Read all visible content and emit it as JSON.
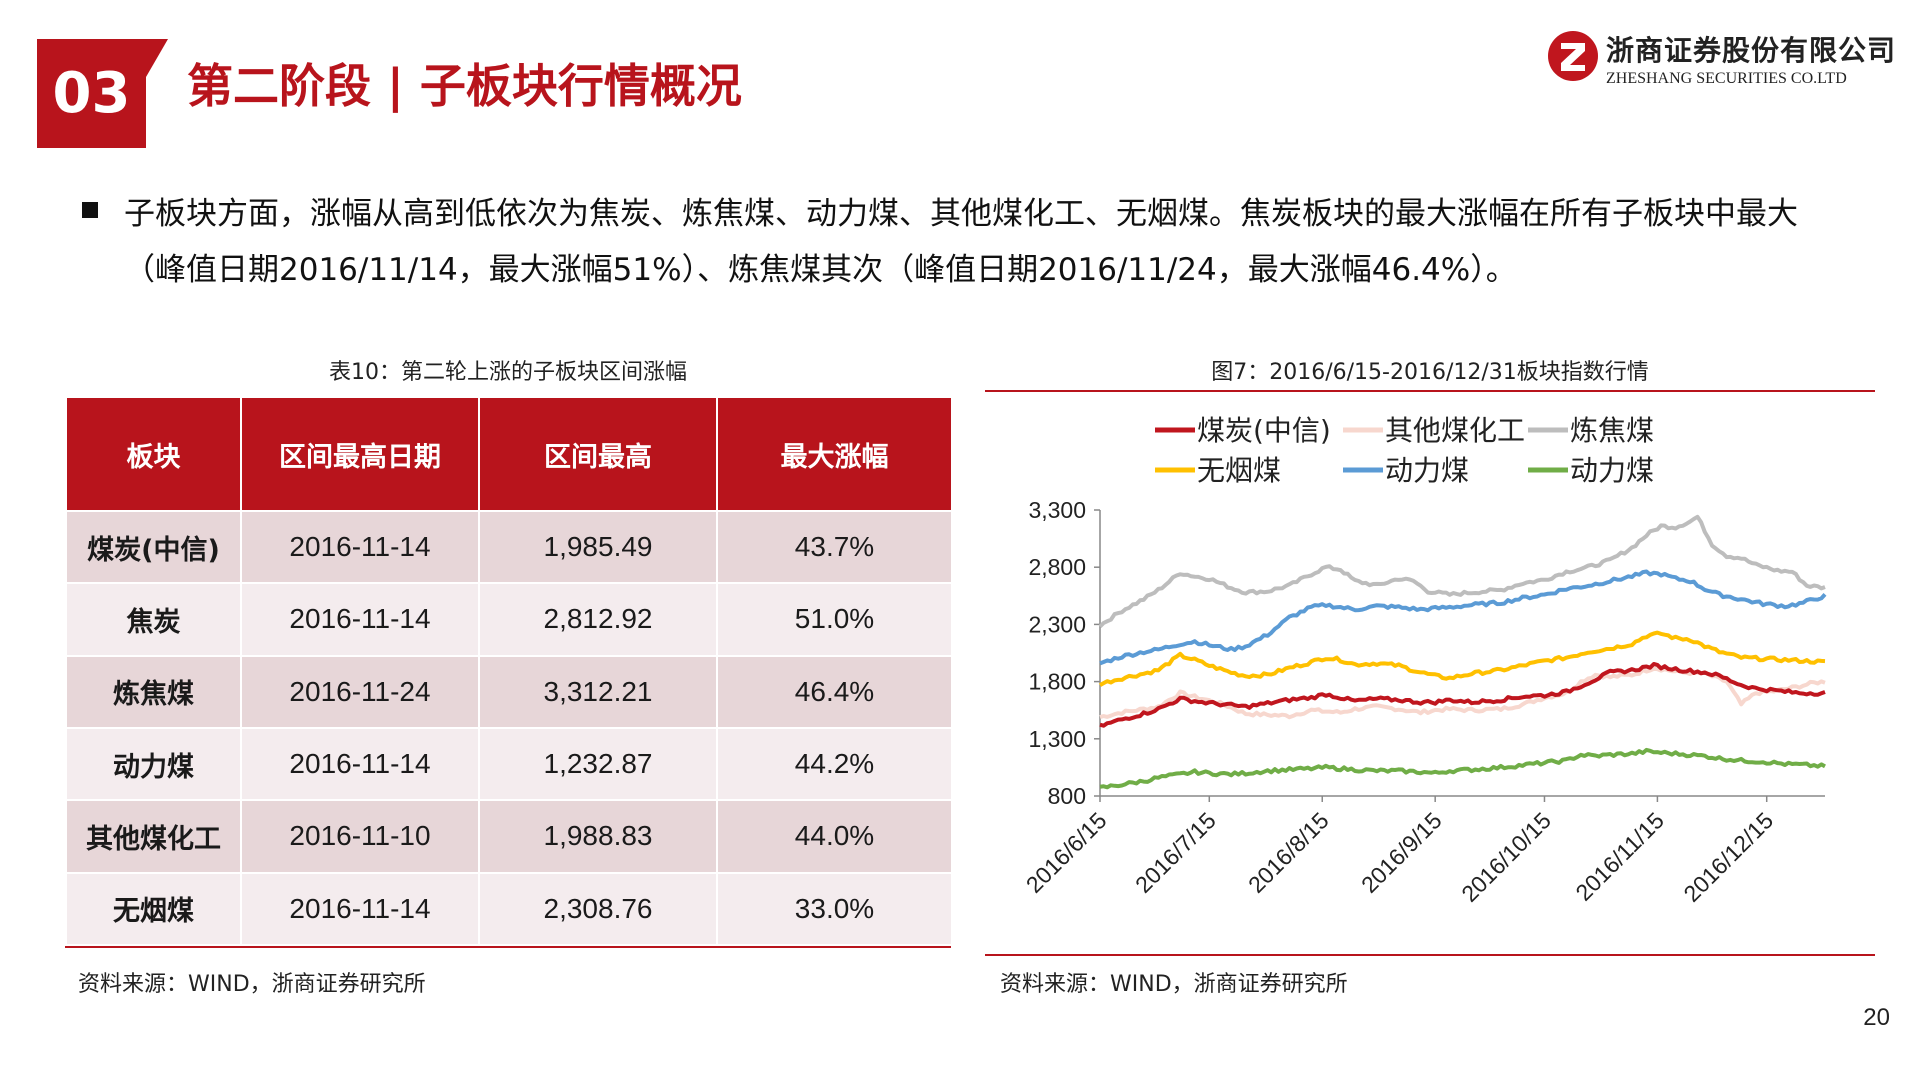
{
  "header": {
    "section_number": "03",
    "title": "第二阶段 | 子板块行情概况",
    "company_cn": "浙商证券股份有限公司",
    "company_en": "ZHESHANG SECURITIES CO.LTD"
  },
  "bullet": {
    "text": "子板块方面，涨幅从高到低依次为焦炭、炼焦煤、动力煤、其他煤化工、无烟煤。焦炭板块的最大涨幅在所有子板块中最大（峰值日期2016/11/14，最大涨幅51%）、炼焦煤其次（峰值日期2016/11/24，最大涨幅46.4%）。"
  },
  "table": {
    "caption": "表10：第二轮上涨的子板块区间涨幅",
    "headers": [
      "板块",
      "区间最高日期",
      "区间最高",
      "最大涨幅"
    ],
    "rows": [
      [
        "煤炭(中信)",
        "2016-11-14",
        "1,985.49",
        "43.7%"
      ],
      [
        "焦炭",
        "2016-11-14",
        "2,812.92",
        "51.0%"
      ],
      [
        "炼焦煤",
        "2016-11-24",
        "3,312.21",
        "46.4%"
      ],
      [
        "动力煤",
        "2016-11-14",
        "1,232.87",
        "44.2%"
      ],
      [
        "其他煤化工",
        "2016-11-10",
        "1,988.83",
        "44.0%"
      ],
      [
        "无烟煤",
        "2016-11-14",
        "2,308.76",
        "33.0%"
      ]
    ],
    "source": "资料来源：WIND，浙商证券研究所"
  },
  "chart_caption": "图7：2016/6/15-2016/12/31板块指数行情",
  "chart_source": "资料来源：WIND，浙商证券研究所",
  "page_number": "20",
  "colors": {
    "brand_red": "#b8141c",
    "row_odd": "#e7d6d8",
    "row_even": "#f4ecee"
  },
  "chart_data": {
    "type": "line",
    "title": "图7：2016/6/15-2016/12/31板块指数行情",
    "xlabel": "",
    "ylabel": "",
    "ylim": [
      800,
      3300
    ],
    "yticks": [
      "800",
      "1,300",
      "1,800",
      "2,300",
      "2,800",
      "3,300"
    ],
    "ytick_values": [
      800,
      1300,
      1800,
      2300,
      2800,
      3300
    ],
    "xticks": [
      "2016/6/15",
      "2016/7/15",
      "2016/8/15",
      "2016/9/15",
      "2016/10/15",
      "2016/11/15",
      "2016/12/15"
    ],
    "x_range_days": [
      0,
      199
    ],
    "xtick_days": [
      0,
      30,
      61,
      92,
      122,
      153,
      183
    ],
    "legend_position": "top",
    "series": [
      {
        "name": "煤炭(中信)",
        "color": "#c0161e",
        "points": [
          [
            0,
            1410
          ],
          [
            6,
            1470
          ],
          [
            12,
            1520
          ],
          [
            16,
            1560
          ],
          [
            22,
            1650
          ],
          [
            28,
            1620
          ],
          [
            34,
            1600
          ],
          [
            40,
            1580
          ],
          [
            46,
            1610
          ],
          [
            52,
            1640
          ],
          [
            58,
            1660
          ],
          [
            62,
            1690
          ],
          [
            66,
            1660
          ],
          [
            70,
            1630
          ],
          [
            76,
            1650
          ],
          [
            82,
            1640
          ],
          [
            88,
            1620
          ],
          [
            92,
            1620
          ],
          [
            96,
            1640
          ],
          [
            102,
            1620
          ],
          [
            110,
            1640
          ],
          [
            116,
            1670
          ],
          [
            122,
            1680
          ],
          [
            128,
            1710
          ],
          [
            134,
            1790
          ],
          [
            140,
            1880
          ],
          [
            146,
            1900
          ],
          [
            152,
            1940
          ],
          [
            156,
            1920
          ],
          [
            160,
            1900
          ],
          [
            166,
            1880
          ],
          [
            170,
            1850
          ],
          [
            176,
            1770
          ],
          [
            180,
            1740
          ],
          [
            186,
            1720
          ],
          [
            192,
            1700
          ],
          [
            199,
            1700
          ]
        ]
      },
      {
        "name": "其他煤化工",
        "color": "#f7d7ce",
        "points": [
          [
            0,
            1490
          ],
          [
            6,
            1530
          ],
          [
            12,
            1560
          ],
          [
            16,
            1580
          ],
          [
            22,
            1700
          ],
          [
            28,
            1650
          ],
          [
            34,
            1600
          ],
          [
            40,
            1520
          ],
          [
            46,
            1510
          ],
          [
            52,
            1500
          ],
          [
            58,
            1550
          ],
          [
            62,
            1540
          ],
          [
            66,
            1530
          ],
          [
            70,
            1560
          ],
          [
            76,
            1580
          ],
          [
            82,
            1560
          ],
          [
            88,
            1530
          ],
          [
            92,
            1550
          ],
          [
            96,
            1560
          ],
          [
            102,
            1550
          ],
          [
            110,
            1560
          ],
          [
            116,
            1600
          ],
          [
            122,
            1660
          ],
          [
            128,
            1700
          ],
          [
            132,
            1800
          ],
          [
            136,
            1860
          ],
          [
            140,
            1840
          ],
          [
            146,
            1860
          ],
          [
            152,
            1920
          ],
          [
            156,
            1900
          ],
          [
            160,
            1880
          ],
          [
            166,
            1870
          ],
          [
            172,
            1800
          ],
          [
            176,
            1600
          ],
          [
            180,
            1700
          ],
          [
            186,
            1720
          ],
          [
            192,
            1760
          ],
          [
            196,
            1790
          ],
          [
            199,
            1800
          ]
        ]
      },
      {
        "name": "炼焦煤",
        "color": "#bdbdbd",
        "points": [
          [
            0,
            2290
          ],
          [
            6,
            2420
          ],
          [
            12,
            2520
          ],
          [
            16,
            2600
          ],
          [
            22,
            2750
          ],
          [
            26,
            2720
          ],
          [
            30,
            2700
          ],
          [
            36,
            2620
          ],
          [
            40,
            2580
          ],
          [
            46,
            2590
          ],
          [
            52,
            2640
          ],
          [
            58,
            2740
          ],
          [
            62,
            2800
          ],
          [
            66,
            2780
          ],
          [
            70,
            2680
          ],
          [
            76,
            2640
          ],
          [
            82,
            2700
          ],
          [
            86,
            2680
          ],
          [
            90,
            2590
          ],
          [
            96,
            2560
          ],
          [
            102,
            2580
          ],
          [
            110,
            2600
          ],
          [
            116,
            2660
          ],
          [
            122,
            2690
          ],
          [
            128,
            2760
          ],
          [
            134,
            2800
          ],
          [
            140,
            2860
          ],
          [
            146,
            2970
          ],
          [
            150,
            3080
          ],
          [
            154,
            3160
          ],
          [
            158,
            3150
          ],
          [
            162,
            3200
          ],
          [
            164,
            3240
          ],
          [
            168,
            3000
          ],
          [
            172,
            2900
          ],
          [
            176,
            2880
          ],
          [
            180,
            2820
          ],
          [
            186,
            2770
          ],
          [
            190,
            2760
          ],
          [
            194,
            2640
          ],
          [
            199,
            2620
          ]
        ]
      },
      {
        "name": "无烟煤",
        "color": "#ffc000",
        "points": [
          [
            0,
            1780
          ],
          [
            6,
            1830
          ],
          [
            12,
            1870
          ],
          [
            16,
            1900
          ],
          [
            22,
            2030
          ],
          [
            26,
            1990
          ],
          [
            30,
            1940
          ],
          [
            36,
            1880
          ],
          [
            40,
            1850
          ],
          [
            46,
            1860
          ],
          [
            52,
            1920
          ],
          [
            58,
            1970
          ],
          [
            62,
            2010
          ],
          [
            66,
            1990
          ],
          [
            70,
            1950
          ],
          [
            76,
            1960
          ],
          [
            82,
            1940
          ],
          [
            88,
            1880
          ],
          [
            92,
            1850
          ],
          [
            96,
            1830
          ],
          [
            102,
            1870
          ],
          [
            110,
            1900
          ],
          [
            116,
            1940
          ],
          [
            122,
            1980
          ],
          [
            128,
            2010
          ],
          [
            134,
            2060
          ],
          [
            140,
            2090
          ],
          [
            146,
            2130
          ],
          [
            150,
            2200
          ],
          [
            154,
            2220
          ],
          [
            158,
            2180
          ],
          [
            162,
            2170
          ],
          [
            166,
            2110
          ],
          [
            170,
            2060
          ],
          [
            176,
            2010
          ],
          [
            182,
            2000
          ],
          [
            188,
            1990
          ],
          [
            194,
            1980
          ],
          [
            199,
            1970
          ]
        ]
      },
      {
        "name": "动力煤",
        "color": "#5b9bd5",
        "points": [
          [
            0,
            1960
          ],
          [
            6,
            2020
          ],
          [
            12,
            2060
          ],
          [
            16,
            2080
          ],
          [
            22,
            2130
          ],
          [
            26,
            2150
          ],
          [
            30,
            2120
          ],
          [
            36,
            2080
          ],
          [
            40,
            2110
          ],
          [
            46,
            2210
          ],
          [
            52,
            2360
          ],
          [
            58,
            2450
          ],
          [
            62,
            2470
          ],
          [
            66,
            2450
          ],
          [
            70,
            2430
          ],
          [
            76,
            2460
          ],
          [
            82,
            2450
          ],
          [
            88,
            2430
          ],
          [
            92,
            2440
          ],
          [
            96,
            2450
          ],
          [
            102,
            2470
          ],
          [
            110,
            2490
          ],
          [
            116,
            2530
          ],
          [
            122,
            2560
          ],
          [
            128,
            2610
          ],
          [
            134,
            2640
          ],
          [
            140,
            2680
          ],
          [
            146,
            2720
          ],
          [
            150,
            2750
          ],
          [
            154,
            2740
          ],
          [
            158,
            2700
          ],
          [
            162,
            2680
          ],
          [
            166,
            2610
          ],
          [
            170,
            2560
          ],
          [
            176,
            2520
          ],
          [
            182,
            2480
          ],
          [
            188,
            2460
          ],
          [
            192,
            2480
          ],
          [
            196,
            2520
          ],
          [
            199,
            2550
          ]
        ]
      },
      {
        "name": "动力煤",
        "color": "#70ad47",
        "points": [
          [
            0,
            870
          ],
          [
            6,
            900
          ],
          [
            12,
            930
          ],
          [
            16,
            960
          ],
          [
            22,
            990
          ],
          [
            26,
            1010
          ],
          [
            30,
            1000
          ],
          [
            36,
            990
          ],
          [
            40,
            1000
          ],
          [
            46,
            1020
          ],
          [
            52,
            1030
          ],
          [
            58,
            1040
          ],
          [
            62,
            1050
          ],
          [
            66,
            1040
          ],
          [
            70,
            1030
          ],
          [
            76,
            1020
          ],
          [
            82,
            1020
          ],
          [
            88,
            1010
          ],
          [
            92,
            1000
          ],
          [
            96,
            1020
          ],
          [
            102,
            1030
          ],
          [
            110,
            1050
          ],
          [
            116,
            1070
          ],
          [
            122,
            1090
          ],
          [
            128,
            1110
          ],
          [
            132,
            1160
          ],
          [
            136,
            1150
          ],
          [
            140,
            1160
          ],
          [
            146,
            1170
          ],
          [
            150,
            1190
          ],
          [
            154,
            1180
          ],
          [
            158,
            1170
          ],
          [
            162,
            1160
          ],
          [
            166,
            1150
          ],
          [
            170,
            1130
          ],
          [
            176,
            1110
          ],
          [
            182,
            1100
          ],
          [
            188,
            1080
          ],
          [
            194,
            1070
          ],
          [
            199,
            1060
          ]
        ]
      }
    ]
  }
}
